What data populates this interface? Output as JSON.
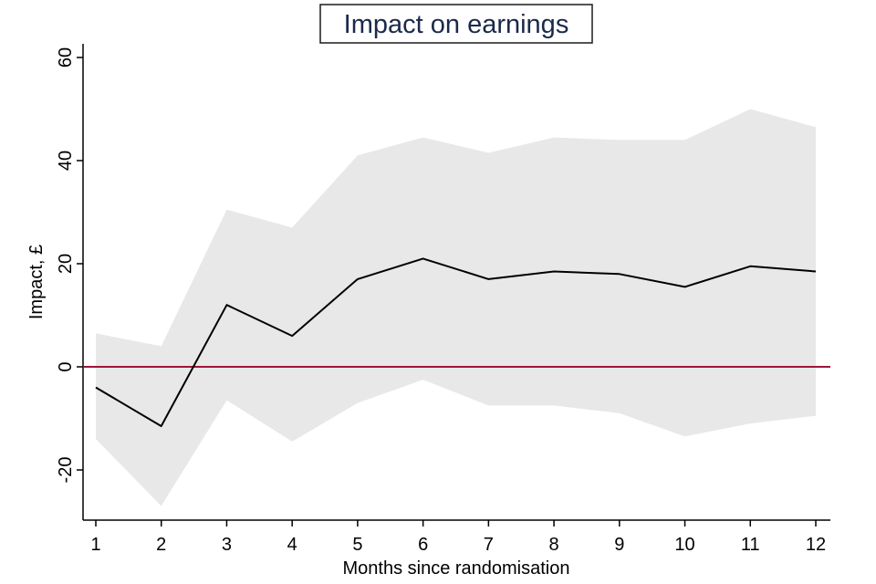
{
  "chart_data": {
    "type": "line",
    "title": "Impact on earnings",
    "xlabel": "Months since randomisation",
    "ylabel": "Impact, £",
    "x": [
      1,
      2,
      3,
      4,
      5,
      6,
      7,
      8,
      9,
      10,
      11,
      12
    ],
    "xlim": [
      1,
      12
    ],
    "ylim": [
      -30,
      60
    ],
    "yticks": [
      -20,
      0,
      20,
      40,
      60
    ],
    "series": [
      {
        "name": "Impact",
        "values": [
          -4,
          -11.5,
          12,
          6,
          17,
          21,
          17,
          18.5,
          18,
          15.5,
          19.5,
          18.5
        ]
      }
    ],
    "ci_upper": [
      6.5,
      4,
      30.5,
      27,
      41,
      44.5,
      41.5,
      44.5,
      44,
      44,
      50,
      46.5
    ],
    "ci_lower": [
      -14,
      -27,
      -6.5,
      -14.5,
      -7,
      -2.5,
      -7.5,
      -7.5,
      -9,
      -13.5,
      -11,
      -9.5
    ],
    "reference_line": {
      "y": 0,
      "color": "#a0143c"
    },
    "colors": {
      "band": "#e8e8e8",
      "line": "#000000"
    }
  }
}
